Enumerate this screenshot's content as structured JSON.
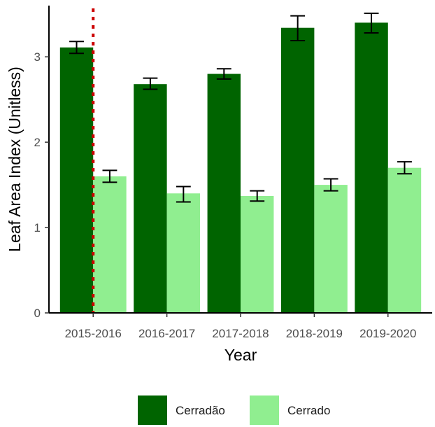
{
  "chart_data": {
    "type": "bar",
    "xlabel": "Year",
    "ylabel": "Leaf Area Index (Unitless)",
    "categories": [
      "2015-2016",
      "2016-2017",
      "2017-2018",
      "2018-2019",
      "2019-2020"
    ],
    "series": [
      {
        "name": "Cerradão",
        "color": "#006400",
        "values": [
          3.11,
          2.68,
          2.8,
          3.34,
          3.4
        ],
        "error_low": [
          3.04,
          2.62,
          2.74,
          3.19,
          3.28
        ],
        "error_high": [
          3.18,
          2.75,
          2.86,
          3.48,
          3.51
        ]
      },
      {
        "name": "Cerrado",
        "color": "#90EE90",
        "values": [
          1.6,
          1.4,
          1.37,
          1.5,
          1.7
        ],
        "error_low": [
          1.53,
          1.3,
          1.31,
          1.43,
          1.63
        ],
        "error_high": [
          1.67,
          1.48,
          1.43,
          1.57,
          1.77
        ]
      }
    ],
    "ylim": [
      0,
      3.6
    ],
    "yticks": [
      0,
      1,
      2,
      3
    ],
    "reference_line": {
      "style": "dotted",
      "color": "#cc0000",
      "x_category": "2015-2016",
      "position": "between-series"
    },
    "legend": {
      "placement": "bottom"
    },
    "grid": false
  }
}
